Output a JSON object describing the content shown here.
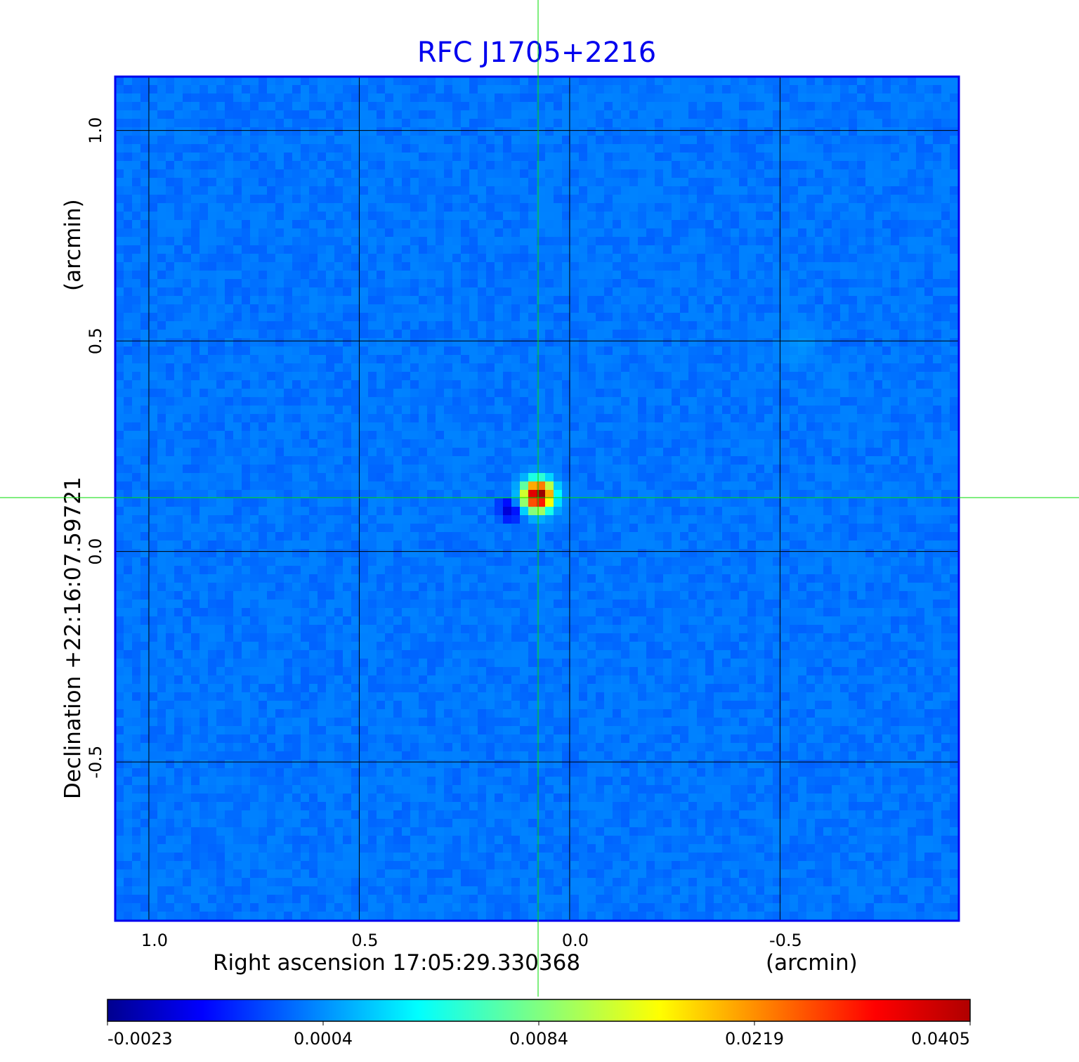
{
  "chart_data": {
    "type": "heatmap",
    "title": "RFC J1705+2216",
    "xlabel": "Right ascension  17:05:29.330368",
    "xlabel_unit": "(arcmin)",
    "ylabel": "Declination  +22:16:07.59721",
    "ylabel_unit": "(arcmin)",
    "x_ticks": [
      {
        "value": 1.0,
        "label": "1.0"
      },
      {
        "value": 0.5,
        "label": "0.5"
      },
      {
        "value": 0.0,
        "label": "0.0"
      },
      {
        "value": -0.5,
        "label": "-0.5"
      }
    ],
    "y_ticks": [
      {
        "value": 1.0,
        "label": "1.0"
      },
      {
        "value": 0.5,
        "label": "0.5"
      },
      {
        "value": 0.0,
        "label": "0.0"
      },
      {
        "value": -0.5,
        "label": "-0.5"
      }
    ],
    "xlim": [
      1.08,
      -0.925
    ],
    "ylim": [
      -0.877,
      1.128
    ],
    "grid": true,
    "crosshair": {
      "x": 0.075,
      "y": 0.128
    },
    "colormap": "jet",
    "colorbar": {
      "placement": "bottom",
      "ticks": [
        "-0.0023",
        "0.0004",
        "0.0084",
        "0.0219",
        "0.0405"
      ],
      "tick_values": [
        -0.0023,
        0.0004,
        0.0084,
        0.0219,
        0.0405
      ]
    },
    "background_level": 0.0003,
    "sources": [
      {
        "x": 0.075,
        "y": 0.133,
        "peak": 0.0405,
        "sigma": 0.022
      },
      {
        "x": 0.14,
        "y": 0.1,
        "peak": -0.0021,
        "sigma": 0.02
      },
      {
        "x": -0.547,
        "y": 0.488,
        "peak": 0.0007,
        "sigma": 0.03
      },
      {
        "x": -0.63,
        "y": 0.41,
        "peak": 0.0005,
        "sigma": 0.02
      }
    ],
    "colors": {
      "frame": "#0000ee",
      "crosshair": "#00dd00",
      "grid": "#000000"
    }
  }
}
